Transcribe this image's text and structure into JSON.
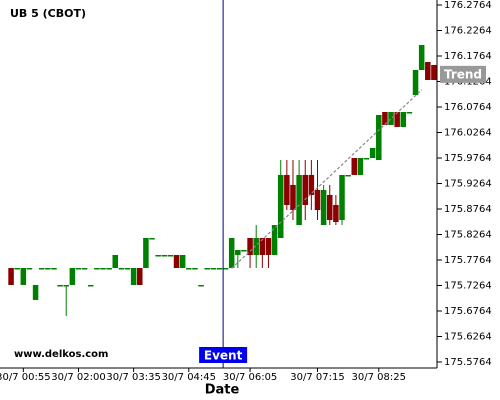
{
  "chart_data": {
    "type": "candlestick",
    "title": "UB 5 (CBOT)",
    "watermark": "www.delkos.com",
    "x_label": "Date",
    "categories": [
      null,
      null,
      "30/7 00:55",
      null,
      null,
      null,
      null,
      null,
      null,
      null,
      null,
      "30/7 02:00",
      null,
      null,
      null,
      null,
      null,
      null,
      null,
      null,
      "30/7 03:35",
      null,
      null,
      null,
      null,
      null,
      null,
      null,
      null,
      "30/7 04:45",
      null,
      null,
      null,
      null,
      null,
      null,
      null,
      null,
      null,
      "30/7 06:05",
      null,
      null,
      null,
      null,
      null,
      null,
      null,
      null,
      null,
      null,
      "30/7 07:15",
      null,
      null,
      null,
      null,
      null,
      null,
      null,
      null,
      null,
      "30/7 08:25",
      null,
      null,
      null,
      null,
      null,
      null,
      null,
      null,
      null
    ],
    "open": [
      175.7607,
      175.7607,
      175.7274,
      175.7607,
      175.698,
      175.7607,
      175.7607,
      175.7607,
      175.7274,
      175.7274,
      175.7274,
      175.7607,
      175.7607,
      175.7274,
      175.7607,
      175.7607,
      175.7607,
      175.7607,
      175.7607,
      175.7607,
      175.7274,
      175.7607,
      175.7607,
      175.8195,
      175.7862,
      175.7862,
      175.7862,
      175.7862,
      175.7607,
      175.7607,
      175.7607,
      175.7274,
      175.7607,
      175.7607,
      175.7607,
      175.7607,
      175.7607,
      175.7862,
      175.796,
      175.8195,
      175.7862,
      175.8195,
      175.8195,
      175.7862,
      175.8195,
      175.9431,
      175.9235,
      175.845,
      175.9431,
      175.9431,
      175.9137,
      175.845,
      175.9039,
      175.8842,
      175.8548,
      175.9431,
      175.9764,
      175.9431,
      175.9764,
      175.9764,
      175.9725,
      176.0666,
      176.0411,
      176.0666,
      176.0372,
      176.0666,
      176.0999,
      176.1489,
      176.1646,
      176.1588
    ],
    "high": [
      175.7607,
      175.7607,
      175.7607,
      175.7607,
      175.7274,
      175.7607,
      175.7607,
      175.7607,
      175.7274,
      175.7274,
      175.7607,
      175.7607,
      175.7607,
      175.7274,
      175.7607,
      175.7607,
      175.7607,
      175.7862,
      175.7607,
      175.7607,
      175.7607,
      175.7607,
      175.8195,
      175.8195,
      175.7862,
      175.7862,
      175.7862,
      175.7862,
      175.7862,
      175.7607,
      175.7607,
      175.7274,
      175.7607,
      175.7607,
      175.7607,
      175.7607,
      175.8195,
      175.796,
      175.796,
      175.8195,
      175.845,
      175.8195,
      175.8195,
      175.845,
      175.9725,
      175.9725,
      175.9725,
      175.9725,
      175.9725,
      175.9725,
      175.9725,
      175.9235,
      175.9235,
      175.9039,
      175.9431,
      175.9431,
      175.9764,
      175.9764,
      175.9764,
      175.996,
      176.0607,
      176.0666,
      176.0666,
      176.0666,
      176.0666,
      176.0666,
      176.1489,
      176.198,
      176.1646,
      176.1588
    ],
    "low": [
      175.7274,
      175.7607,
      175.7274,
      175.7607,
      175.698,
      175.7607,
      175.7607,
      175.7607,
      175.7274,
      175.6666,
      175.7274,
      175.7607,
      175.7607,
      175.7274,
      175.7607,
      175.7607,
      175.7607,
      175.7607,
      175.7607,
      175.7607,
      175.7274,
      175.7274,
      175.7607,
      175.8195,
      175.7862,
      175.7862,
      175.7862,
      175.7607,
      175.7607,
      175.7607,
      175.7607,
      175.7274,
      175.7607,
      175.7607,
      175.7607,
      175.7607,
      175.7607,
      175.7607,
      175.796,
      175.7607,
      175.7607,
      175.7607,
      175.7607,
      175.7862,
      175.8195,
      175.8744,
      175.8548,
      175.845,
      175.8548,
      175.8744,
      175.8548,
      175.845,
      175.845,
      175.845,
      175.845,
      175.9431,
      175.9431,
      175.9431,
      175.9764,
      175.9764,
      175.9725,
      176.0411,
      176.0411,
      176.0372,
      176.0372,
      176.0666,
      176.0999,
      176.1489,
      176.1293,
      176.1293
    ],
    "close": [
      175.7274,
      175.7607,
      175.7607,
      175.7607,
      175.7274,
      175.7607,
      175.7607,
      175.7607,
      175.7274,
      175.7274,
      175.7607,
      175.7607,
      175.7607,
      175.7274,
      175.7607,
      175.7607,
      175.7607,
      175.7862,
      175.7607,
      175.7607,
      175.7607,
      175.7274,
      175.8195,
      175.8195,
      175.7862,
      175.7862,
      175.7862,
      175.7607,
      175.7862,
      175.7607,
      175.7607,
      175.7274,
      175.7607,
      175.7607,
      175.7607,
      175.7607,
      175.8195,
      175.796,
      175.796,
      175.7862,
      175.8195,
      175.7862,
      175.7862,
      175.845,
      175.9431,
      175.8842,
      175.8744,
      175.9431,
      175.8842,
      175.9039,
      175.8744,
      175.9137,
      175.8548,
      175.8509,
      175.9431,
      175.9431,
      175.9431,
      175.9764,
      175.9764,
      175.996,
      176.0607,
      176.0411,
      176.0666,
      176.0372,
      176.0666,
      176.0666,
      176.1489,
      176.198,
      176.1293,
      176.1293
    ],
    "up_color": "#008000",
    "down_color": "#8b0000",
    "ylim": [
      175.5646,
      176.2862
    ],
    "yticks": [
      175.5764,
      175.6264,
      175.6764,
      175.7264,
      175.7764,
      175.8264,
      175.8764,
      175.9264,
      175.9764,
      176.0264,
      176.0764,
      176.1264,
      176.1764,
      176.2264,
      176.2764
    ],
    "event": {
      "label": "Event",
      "index": 34.6
    },
    "trend": {
      "label": "Trend",
      "start": [
        36,
        175.76
      ],
      "end": [
        67,
        176.11
      ]
    }
  }
}
